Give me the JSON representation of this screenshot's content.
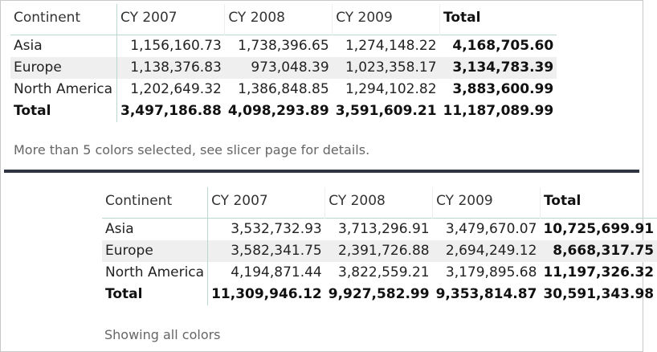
{
  "top": {
    "columns": [
      "Continent",
      "CY 2007",
      "CY 2008",
      "CY 2009",
      "Total"
    ],
    "rows": [
      {
        "label": "Asia",
        "values": [
          "1,156,160.73",
          "1,738,396.65",
          "1,274,148.22"
        ],
        "total": "4,168,705.60"
      },
      {
        "label": "Europe",
        "values": [
          "1,138,376.83",
          "973,048.39",
          "1,023,358.17"
        ],
        "total": "3,134,783.39"
      },
      {
        "label": "North America",
        "values": [
          "1,202,649.32",
          "1,386,848.85",
          "1,294,102.82"
        ],
        "total": "3,883,600.99"
      }
    ],
    "total_row": {
      "label": "Total",
      "values": [
        "3,497,186.88",
        "4,098,293.89",
        "3,591,609.21"
      ],
      "total": "11,187,089.99"
    },
    "caption": "More than 5 colors selected, see slicer page for details."
  },
  "bottom": {
    "columns": [
      "Continent",
      "CY 2007",
      "CY 2008",
      "CY 2009",
      "Total"
    ],
    "rows": [
      {
        "label": "Asia",
        "values": [
          "3,532,732.93",
          "3,713,296.91",
          "3,479,670.07"
        ],
        "total": "10,725,699.91"
      },
      {
        "label": "Europe",
        "values": [
          "3,582,341.75",
          "2,391,726.88",
          "2,694,249.12"
        ],
        "total": "8,668,317.75"
      },
      {
        "label": "North America",
        "values": [
          "4,194,871.44",
          "3,822,559.21",
          "3,179,895.68"
        ],
        "total": "11,197,326.32"
      }
    ],
    "total_row": {
      "label": "Total",
      "values": [
        "11,309,946.12",
        "9,927,582.99",
        "9,353,814.87"
      ],
      "total": "30,591,343.98"
    },
    "caption": "Showing all colors"
  }
}
